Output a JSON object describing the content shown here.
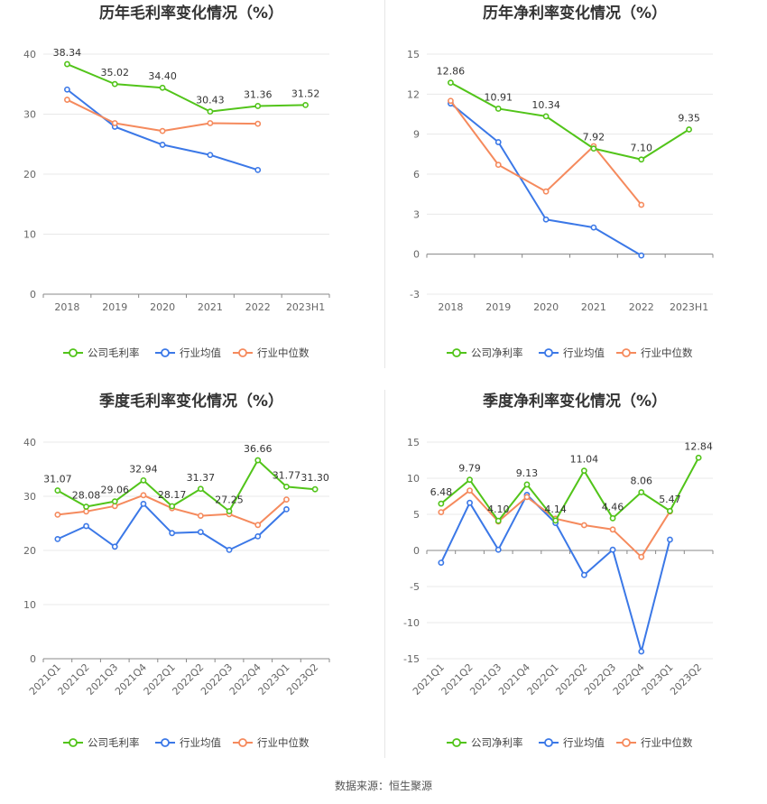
{
  "colors": {
    "company": "#52c41a",
    "industry_avg": "#3b78e7",
    "industry_median": "#f58a5d"
  },
  "chart_data": [
    {
      "type": "line",
      "title": "历年毛利率变化情况（%）",
      "categories": [
        "2018",
        "2019",
        "2020",
        "2021",
        "2022",
        "2023H1"
      ],
      "ylim": [
        0,
        40
      ],
      "yticks": [
        0,
        10,
        20,
        30,
        40
      ],
      "rotate_labels": false,
      "series": [
        {
          "name": "公司毛利率",
          "key": "company",
          "values": [
            38.34,
            35.02,
            34.4,
            30.43,
            31.36,
            31.52
          ]
        },
        {
          "name": "行业均值",
          "key": "industry_avg",
          "values": [
            34.1,
            27.9,
            24.9,
            23.2,
            20.7,
            null
          ]
        },
        {
          "name": "行业中位数",
          "key": "industry_median",
          "values": [
            32.4,
            28.5,
            27.2,
            28.5,
            28.4,
            null
          ]
        }
      ],
      "labels": [
        "38.34",
        "35.02",
        "34.40",
        "30.43",
        "31.36",
        "31.52"
      ]
    },
    {
      "type": "line",
      "title": "历年净利率变化情况（%）",
      "categories": [
        "2018",
        "2019",
        "2020",
        "2021",
        "2022",
        "2023H1"
      ],
      "ylim": [
        -3,
        15
      ],
      "yticks": [
        -3,
        0,
        3,
        6,
        9,
        12,
        15
      ],
      "rotate_labels": false,
      "series": [
        {
          "name": "公司净利率",
          "key": "company",
          "values": [
            12.86,
            10.91,
            10.34,
            7.92,
            7.1,
            9.35
          ]
        },
        {
          "name": "行业均值",
          "key": "industry_avg",
          "values": [
            11.3,
            8.4,
            2.6,
            2.0,
            -0.1,
            null
          ]
        },
        {
          "name": "行业中位数",
          "key": "industry_median",
          "values": [
            11.5,
            6.7,
            4.7,
            8.1,
            3.7,
            null
          ]
        }
      ],
      "labels": [
        "12.86",
        "10.91",
        "10.34",
        "7.92",
        "7.10",
        "9.35"
      ]
    },
    {
      "type": "line",
      "title": "季度毛利率变化情况（%）",
      "categories": [
        "2021Q1",
        "2021Q2",
        "2021Q3",
        "2021Q4",
        "2022Q1",
        "2022Q2",
        "2022Q3",
        "2022Q4",
        "2023Q1",
        "2023Q2"
      ],
      "ylim": [
        0,
        40
      ],
      "yticks": [
        0,
        10,
        20,
        30,
        40
      ],
      "rotate_labels": true,
      "series": [
        {
          "name": "公司毛利率",
          "key": "company",
          "values": [
            31.07,
            28.08,
            29.06,
            32.94,
            28.17,
            31.37,
            27.25,
            36.66,
            31.77,
            31.3
          ]
        },
        {
          "name": "行业均值",
          "key": "industry_avg",
          "values": [
            22.1,
            24.5,
            20.7,
            28.6,
            23.2,
            23.4,
            20.1,
            22.6,
            27.6,
            null
          ]
        },
        {
          "name": "行业中位数",
          "key": "industry_median",
          "values": [
            26.6,
            27.2,
            28.2,
            30.2,
            27.8,
            26.4,
            26.7,
            24.7,
            29.4,
            null
          ]
        }
      ],
      "labels": [
        "31.07",
        "28.08",
        "29.06",
        "32.94",
        "28.17",
        "31.37",
        "27.25",
        "36.66",
        "31.77",
        "31.30"
      ]
    },
    {
      "type": "line",
      "title": "季度净利率变化情况（%）",
      "categories": [
        "2021Q1",
        "2021Q2",
        "2021Q3",
        "2021Q4",
        "2022Q1",
        "2022Q2",
        "2022Q3",
        "2022Q4",
        "2023Q1",
        "2023Q2"
      ],
      "ylim": [
        -15,
        15
      ],
      "yticks": [
        -15,
        -10,
        -5,
        0,
        5,
        10,
        15
      ],
      "rotate_labels": true,
      "series": [
        {
          "name": "公司净利率",
          "key": "company",
          "values": [
            6.48,
            9.79,
            4.1,
            9.13,
            4.14,
            11.04,
            4.46,
            8.06,
            5.47,
            12.84
          ]
        },
        {
          "name": "行业均值",
          "key": "industry_avg",
          "values": [
            -1.7,
            6.6,
            0.1,
            7.7,
            3.8,
            -3.4,
            0.1,
            -14.0,
            1.5,
            null
          ]
        },
        {
          "name": "行业中位数",
          "key": "industry_median",
          "values": [
            5.3,
            8.3,
            4.0,
            7.4,
            4.4,
            3.5,
            2.9,
            -0.9,
            5.4,
            null
          ]
        }
      ],
      "labels": [
        "6.48",
        "9.79",
        "4.10",
        "9.13",
        "4.14",
        "11.04",
        "4.46",
        "8.06",
        "5.47",
        "12.84"
      ]
    }
  ],
  "footer": "数据来源：恒生聚源"
}
